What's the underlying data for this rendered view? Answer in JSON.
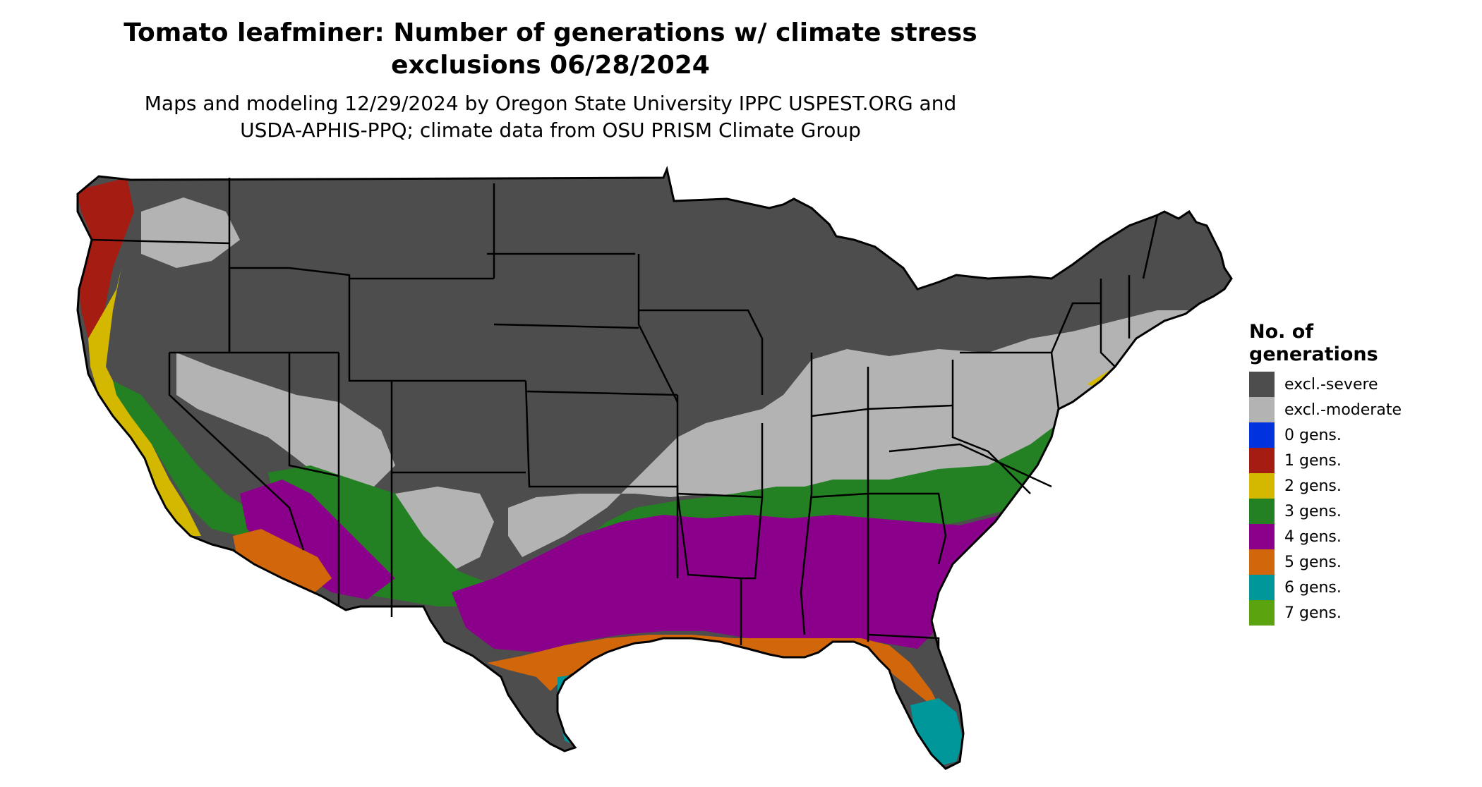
{
  "title_line1": "Tomato leafminer: Number of generations w/ climate stress",
  "title_line2": "exclusions 06/28/2024",
  "subtitle_line1": "Maps and modeling 12/29/2024 by Oregon State University IPPC USPEST.ORG and",
  "subtitle_line2": "USDA-APHIS-PPQ; climate data from OSU PRISM Climate Group",
  "legend": {
    "title_line1": "No. of",
    "title_line2": "generations",
    "items": [
      {
        "label": "excl.-severe",
        "color": "#4d4d4d"
      },
      {
        "label": "excl.-moderate",
        "color": "#b3b3b3"
      },
      {
        "label": "0 gens.",
        "color": "#0033dd"
      },
      {
        "label": "1 gens.",
        "color": "#a51d12"
      },
      {
        "label": "2 gens.",
        "color": "#d4b800"
      },
      {
        "label": "3 gens.",
        "color": "#238023"
      },
      {
        "label": "4 gens.",
        "color": "#8b008b"
      },
      {
        "label": "5 gens.",
        "color": "#d2660b"
      },
      {
        "label": "6 gens.",
        "color": "#00979a"
      },
      {
        "label": "7 gens.",
        "color": "#5ba30f"
      }
    ]
  }
}
